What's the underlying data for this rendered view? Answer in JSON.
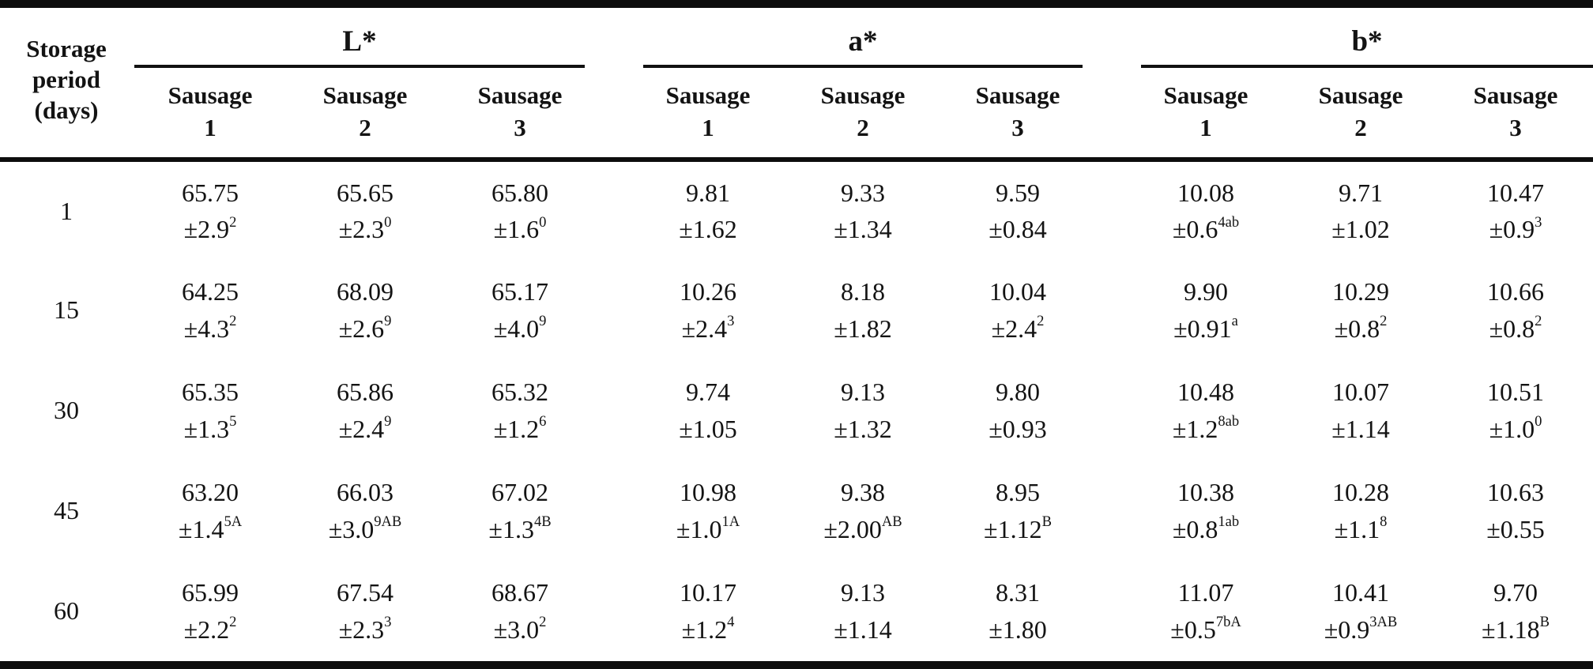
{
  "colors": {
    "background": "#ffffff",
    "text": "#131313",
    "rule": "#0d0d0d"
  },
  "table": {
    "corner_header_lines": [
      "Storage",
      "period",
      "(days)"
    ],
    "groups": [
      {
        "label": "L*"
      },
      {
        "label": "a*"
      },
      {
        "label": "b*"
      }
    ],
    "sub_header_word": "Sausage",
    "sub_header_numbers": [
      "1",
      "2",
      "3"
    ],
    "rows": [
      {
        "period": "1",
        "cells": [
          {
            "value": "65.75",
            "sd": "±2.9",
            "sup": "2"
          },
          {
            "value": "65.65",
            "sd": "±2.3",
            "sup": "0"
          },
          {
            "value": "65.80",
            "sd": "±1.6",
            "sup": "0"
          },
          {
            "value": "9.81",
            "sd": "±1.62",
            "sup": ""
          },
          {
            "value": "9.33",
            "sd": "±1.34",
            "sup": ""
          },
          {
            "value": "9.59",
            "sd": "±0.84",
            "sup": ""
          },
          {
            "value": "10.08",
            "sd": "±0.6",
            "sup": "4ab"
          },
          {
            "value": "9.71",
            "sd": "±1.02",
            "sup": ""
          },
          {
            "value": "10.47",
            "sd": "±0.9",
            "sup": "3"
          }
        ]
      },
      {
        "period": "15",
        "cells": [
          {
            "value": "64.25",
            "sd": "±4.3",
            "sup": "2"
          },
          {
            "value": "68.09",
            "sd": "±2.6",
            "sup": "9"
          },
          {
            "value": "65.17",
            "sd": "±4.0",
            "sup": "9"
          },
          {
            "value": "10.26",
            "sd": "±2.4",
            "sup": "3"
          },
          {
            "value": "8.18",
            "sd": "±1.82",
            "sup": ""
          },
          {
            "value": "10.04",
            "sd": "±2.4",
            "sup": "2"
          },
          {
            "value": "9.90",
            "sd": "±0.91",
            "sup": "a"
          },
          {
            "value": "10.29",
            "sd": "±0.8",
            "sup": "2"
          },
          {
            "value": "10.66",
            "sd": "±0.8",
            "sup": "2"
          }
        ]
      },
      {
        "period": "30",
        "cells": [
          {
            "value": "65.35",
            "sd": "±1.3",
            "sup": "5"
          },
          {
            "value": "65.86",
            "sd": "±2.4",
            "sup": "9"
          },
          {
            "value": "65.32",
            "sd": "±1.2",
            "sup": "6"
          },
          {
            "value": "9.74",
            "sd": "±1.05",
            "sup": ""
          },
          {
            "value": "9.13",
            "sd": "±1.32",
            "sup": ""
          },
          {
            "value": "9.80",
            "sd": "±0.93",
            "sup": ""
          },
          {
            "value": "10.48",
            "sd": "±1.2",
            "sup": "8ab"
          },
          {
            "value": "10.07",
            "sd": "±1.14",
            "sup": ""
          },
          {
            "value": "10.51",
            "sd": "±1.0",
            "sup": "0"
          }
        ]
      },
      {
        "period": "45",
        "cells": [
          {
            "value": "63.20",
            "sd": "±1.4",
            "sup": "5A"
          },
          {
            "value": "66.03",
            "sd": "±3.0",
            "sup": "9AB"
          },
          {
            "value": "67.02",
            "sd": "±1.3",
            "sup": "4B"
          },
          {
            "value": "10.98",
            "sd": "±1.0",
            "sup": "1A"
          },
          {
            "value": "9.38",
            "sd": "±2.00",
            "sup": "AB"
          },
          {
            "value": "8.95",
            "sd": "±1.12",
            "sup": "B"
          },
          {
            "value": "10.38",
            "sd": "±0.8",
            "sup": "1ab"
          },
          {
            "value": "10.28",
            "sd": "±1.1",
            "sup": "8"
          },
          {
            "value": "10.63",
            "sd": "±0.55",
            "sup": ""
          }
        ]
      },
      {
        "period": "60",
        "cells": [
          {
            "value": "65.99",
            "sd": "±2.2",
            "sup": "2"
          },
          {
            "value": "67.54",
            "sd": "±2.3",
            "sup": "3"
          },
          {
            "value": "68.67",
            "sd": "±3.0",
            "sup": "2"
          },
          {
            "value": "10.17",
            "sd": "±1.2",
            "sup": "4"
          },
          {
            "value": "9.13",
            "sd": "±1.14",
            "sup": ""
          },
          {
            "value": "8.31",
            "sd": "±1.80",
            "sup": ""
          },
          {
            "value": "11.07",
            "sd": "±0.5",
            "sup": "7bA"
          },
          {
            "value": "10.41",
            "sd": "±0.9",
            "sup": "3AB"
          },
          {
            "value": "9.70",
            "sd": "±1.18",
            "sup": "B"
          }
        ]
      }
    ]
  }
}
